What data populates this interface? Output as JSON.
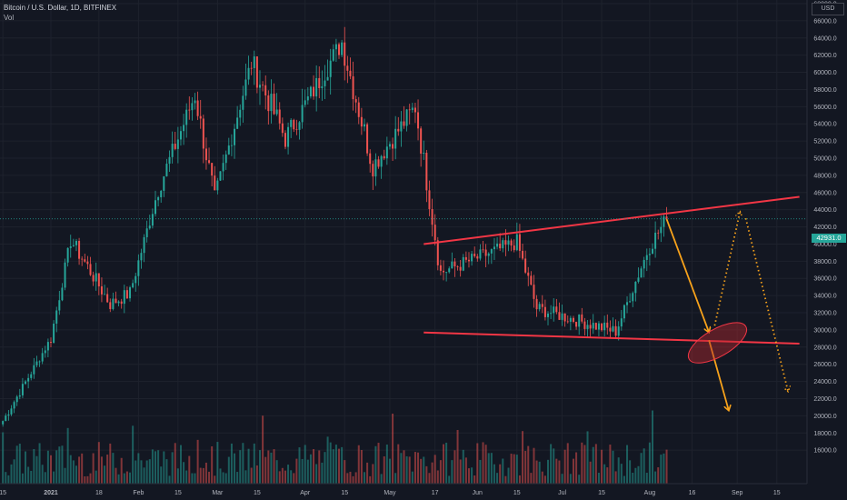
{
  "header": {
    "symbol_line": "Bitcoin / U.S. Dollar, 1D, BITFINEX",
    "indicator": "Vol"
  },
  "price_axis": {
    "currency_label": "USD",
    "current_price": "42931.0",
    "ticks": [
      "68000.0",
      "66000.0",
      "64000.0",
      "62000.0",
      "60000.0",
      "58000.0",
      "56000.0",
      "54000.0",
      "52000.0",
      "50000.0",
      "48000.0",
      "46000.0",
      "44000.0",
      "42000.0",
      "40000.0",
      "38000.0",
      "36000.0",
      "34000.0",
      "32000.0",
      "30000.0",
      "28000.0",
      "26000.0",
      "24000.0",
      "22000.0",
      "20000.0",
      "18000.0",
      "16000.0"
    ]
  },
  "time_axis": {
    "ticks": [
      "15",
      "2021",
      "18",
      "Feb",
      "15",
      "Mar",
      "15",
      "Apr",
      "15",
      "May",
      "17",
      "Jun",
      "15",
      "Jul",
      "15",
      "Aug",
      "16",
      "Sep",
      "15"
    ]
  },
  "colors": {
    "background": "#131722",
    "up": "#26a69a",
    "down": "#ef5350",
    "trendline": "#f23645",
    "arrow": "#f7a21b",
    "current_price_label": "#26a69a"
  },
  "chart_data": {
    "type": "candlestick",
    "symbol": "Bitcoin / U.S. Dollar",
    "interval": "1D",
    "exchange": "BITFINEX",
    "ylim": [
      16000,
      69000
    ],
    "last_price": 42931.0,
    "approximate_daily_closes": [
      {
        "x": "2020-12-15",
        "y": 19400
      },
      {
        "x": "2021-01-01",
        "y": 29000
      },
      {
        "x": "2021-01-08",
        "y": 40500
      },
      {
        "x": "2021-01-15",
        "y": 36800
      },
      {
        "x": "2021-01-22",
        "y": 33000
      },
      {
        "x": "2021-01-29",
        "y": 34300
      },
      {
        "x": "2021-02-08",
        "y": 46400
      },
      {
        "x": "2021-02-21",
        "y": 57400
      },
      {
        "x": "2021-02-28",
        "y": 45200
      },
      {
        "x": "2021-03-13",
        "y": 61200
      },
      {
        "x": "2021-03-25",
        "y": 52300
      },
      {
        "x": "2021-04-14",
        "y": 63500
      },
      {
        "x": "2021-04-25",
        "y": 49100
      },
      {
        "x": "2021-05-10",
        "y": 56000
      },
      {
        "x": "2021-05-19",
        "y": 36700
      },
      {
        "x": "2021-06-15",
        "y": 40200
      },
      {
        "x": "2021-06-22",
        "y": 32500
      },
      {
        "x": "2021-07-20",
        "y": 29800
      },
      {
        "x": "2021-08-01",
        "y": 39800
      },
      {
        "x": "2021-08-07",
        "y": 42931
      }
    ],
    "annotations": [
      {
        "type": "trendline",
        "name": "resistance",
        "points": [
          {
            "x": "2021-05-13",
            "y": 40000
          },
          {
            "x": "2021-09-23",
            "y": 45500
          }
        ]
      },
      {
        "type": "trendline",
        "name": "support",
        "points": [
          {
            "x": "2021-05-13",
            "y": 29700
          },
          {
            "x": "2021-09-23",
            "y": 28400
          }
        ]
      },
      {
        "type": "arrow",
        "style": "solid",
        "points": [
          {
            "x": "2021-08-07",
            "y": 42900
          },
          {
            "x": "2021-08-22",
            "y": 29700
          }
        ]
      },
      {
        "type": "arrow",
        "style": "solid",
        "points": [
          {
            "x": "2021-08-22",
            "y": 28800
          },
          {
            "x": "2021-08-29",
            "y": 20600
          }
        ]
      },
      {
        "type": "arrow",
        "style": "dotted",
        "points": [
          {
            "x": "2021-08-24",
            "y": 30500
          },
          {
            "x": "2021-09-02",
            "y": 43800
          }
        ]
      },
      {
        "type": "arrow",
        "style": "dotted",
        "points": [
          {
            "x": "2021-09-04",
            "y": 43000
          },
          {
            "x": "2021-09-19",
            "y": 22800
          }
        ]
      },
      {
        "type": "ellipse",
        "name": "breakdown-zone",
        "center": {
          "x": "2021-08-25",
          "y": 28500
        }
      }
    ]
  }
}
